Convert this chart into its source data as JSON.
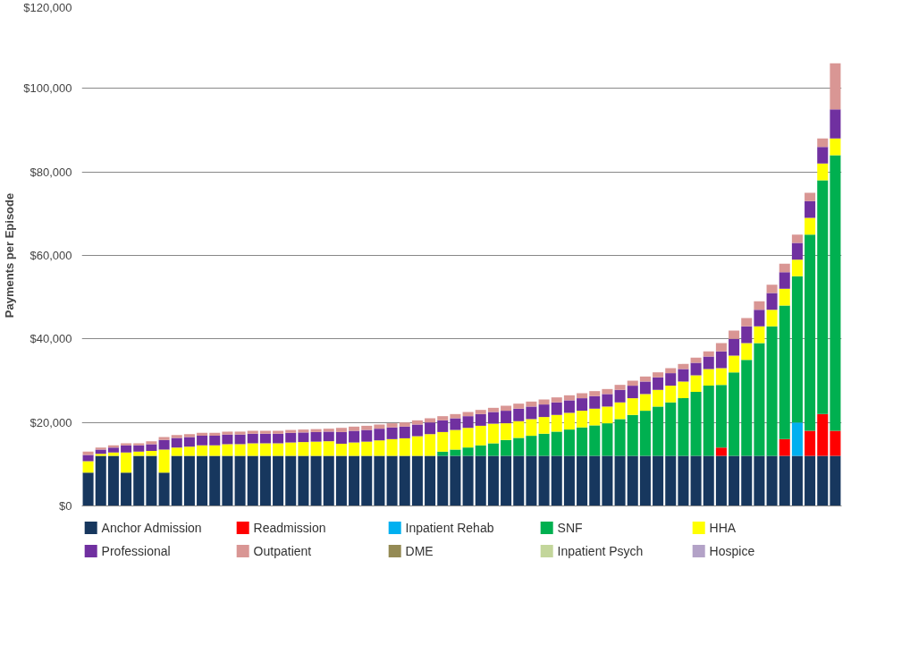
{
  "chart_data": {
    "type": "bar",
    "stacked": true,
    "ylabel": "Payments per Episode",
    "categories": [
      null,
      null,
      null,
      null,
      null,
      null,
      null,
      null,
      null,
      null,
      null,
      null,
      null,
      null,
      null,
      null,
      null,
      null,
      null,
      null,
      null,
      null,
      null,
      null,
      null,
      null,
      null,
      null,
      null,
      null,
      null,
      null,
      null,
      null,
      null,
      null,
      null,
      null,
      null,
      null,
      null,
      null,
      null,
      null,
      null,
      null,
      null,
      null,
      null,
      null,
      null,
      null,
      null,
      null,
      null,
      null,
      null,
      null,
      null,
      null
    ],
    "ylim": [
      0,
      120000
    ],
    "yticks": [
      {
        "value": 0,
        "label": "$0"
      },
      {
        "value": 20000,
        "label": "$20,000"
      },
      {
        "value": 40000,
        "label": "$40,000"
      },
      {
        "value": 60000,
        "label": "$60,000"
      },
      {
        "value": 80000,
        "label": "$80,000"
      },
      {
        "value": 100000,
        "label": "$100,000"
      },
      {
        "value": 120000,
        "label": "$120,000"
      }
    ],
    "grid": "y",
    "legend": "bottom",
    "series": [
      {
        "name": "Anchor Admission",
        "color": "#17375e",
        "values": [
          8000,
          12000,
          12000,
          8000,
          12000,
          12000,
          8000,
          12000,
          12000,
          12000,
          12000,
          12000,
          12000,
          12000,
          12000,
          12000,
          12000,
          12000,
          12000,
          12000,
          12000,
          12000,
          12000,
          12000,
          12000,
          12000,
          12000,
          12000,
          12000,
          12000,
          12000,
          12000,
          12000,
          12000,
          12000,
          12000,
          12000,
          12000,
          12000,
          12000,
          12000,
          12000,
          12000,
          12000,
          12000,
          12000,
          12000,
          12000,
          12000,
          12000,
          12000,
          12000,
          12000,
          12000,
          12000,
          12000,
          12000,
          12000,
          12000,
          12000
        ]
      },
      {
        "name": "Readmission",
        "color": "#ff0000",
        "values": [
          0,
          0,
          0,
          0,
          0,
          0,
          0,
          0,
          0,
          0,
          0,
          0,
          0,
          0,
          0,
          0,
          0,
          0,
          0,
          0,
          0,
          0,
          0,
          0,
          0,
          0,
          0,
          0,
          0,
          0,
          0,
          0,
          0,
          0,
          0,
          0,
          0,
          0,
          0,
          0,
          0,
          0,
          0,
          0,
          0,
          0,
          0,
          0,
          0,
          0,
          2000,
          0,
          0,
          0,
          0,
          4000,
          0,
          6000,
          10000,
          6000
        ]
      },
      {
        "name": "Inpatient Rehab",
        "color": "#00b0f0",
        "values": [
          0,
          0,
          0,
          0,
          0,
          0,
          0,
          0,
          0,
          0,
          0,
          0,
          0,
          0,
          0,
          0,
          0,
          0,
          0,
          0,
          0,
          0,
          0,
          0,
          0,
          0,
          0,
          0,
          0,
          0,
          0,
          0,
          0,
          0,
          0,
          0,
          0,
          0,
          0,
          0,
          0,
          0,
          0,
          0,
          0,
          0,
          0,
          0,
          0,
          0,
          0,
          0,
          0,
          0,
          0,
          0,
          8000,
          0,
          0,
          0
        ]
      },
      {
        "name": "SNF",
        "color": "#00b050",
        "values": [
          0,
          0,
          0,
          0,
          0,
          0,
          0,
          0,
          0,
          0,
          0,
          0,
          0,
          0,
          0,
          0,
          0,
          0,
          0,
          0,
          0,
          0,
          0,
          0,
          0,
          0,
          0,
          0,
          1000,
          1500,
          2000,
          2500,
          3000,
          3800,
          4300,
          4800,
          5300,
          5800,
          6300,
          6800,
          7300,
          7800,
          8800,
          9800,
          10800,
          11800,
          12800,
          13800,
          15300,
          16800,
          15000,
          20000,
          23000,
          27000,
          31000,
          32000,
          35000,
          47000,
          56000,
          66000
        ]
      },
      {
        "name": "HHA",
        "color": "#ffff00",
        "values": [
          2700,
          500,
          800,
          4800,
          1000,
          1200,
          5500,
          2000,
          2200,
          2500,
          2500,
          2800,
          2800,
          3000,
          3000,
          3000,
          3200,
          3300,
          3400,
          3500,
          2900,
          3200,
          3400,
          3700,
          4000,
          4200,
          4700,
          5200,
          4700,
          4700,
          4700,
          4700,
          4700,
          4000,
          4000,
          4000,
          4000,
          4000,
          4000,
          4000,
          4000,
          4000,
          4000,
          4000,
          4000,
          4000,
          4000,
          4000,
          4000,
          4000,
          4000,
          4000,
          4000,
          4000,
          4000,
          4000,
          4000,
          4000,
          4000,
          4000
        ]
      },
      {
        "name": "Professional",
        "color": "#7030a0",
        "values": [
          1500,
          1000,
          1200,
          1700,
          1500,
          1600,
          2300,
          2300,
          2300,
          2300,
          2300,
          2300,
          2300,
          2300,
          2300,
          2300,
          2300,
          2300,
          2300,
          2300,
          2800,
          2800,
          2800,
          2800,
          2800,
          2800,
          2800,
          2800,
          2800,
          2800,
          2800,
          2800,
          2800,
          3000,
          3000,
          3000,
          3000,
          3000,
          3000,
          3000,
          3000,
          3000,
          3000,
          3000,
          3000,
          3000,
          3000,
          3000,
          3000,
          3000,
          4000,
          4000,
          4000,
          4000,
          4000,
          4000,
          4000,
          4000,
          4000,
          7000
        ]
      },
      {
        "name": "Outpatient",
        "color": "#d99694",
        "values": [
          800,
          500,
          500,
          500,
          500,
          700,
          700,
          700,
          700,
          700,
          700,
          700,
          700,
          700,
          700,
          700,
          700,
          700,
          700,
          700,
          1000,
          1000,
          1000,
          1000,
          1000,
          1000,
          1000,
          1000,
          1000,
          1000,
          1000,
          1000,
          1000,
          1200,
          1200,
          1200,
          1200,
          1200,
          1200,
          1200,
          1200,
          1200,
          1200,
          1200,
          1200,
          1200,
          1200,
          1200,
          1200,
          1200,
          2000,
          2000,
          2000,
          2000,
          2000,
          2000,
          2000,
          2000,
          2000,
          11000
        ]
      },
      {
        "name": "DME",
        "color": "#948a54",
        "values": [
          0,
          0,
          0,
          0,
          0,
          0,
          0,
          0,
          0,
          0,
          0,
          0,
          0,
          0,
          0,
          0,
          0,
          0,
          0,
          0,
          0,
          0,
          0,
          0,
          0,
          0,
          0,
          0,
          0,
          0,
          0,
          0,
          0,
          0,
          0,
          0,
          0,
          0,
          0,
          0,
          0,
          0,
          0,
          0,
          0,
          0,
          0,
          0,
          0,
          0,
          0,
          0,
          0,
          0,
          0,
          0,
          0,
          0,
          0,
          0
        ]
      },
      {
        "name": "Inpatient Psych",
        "color": "#c3d69b",
        "values": [
          0,
          0,
          0,
          0,
          0,
          0,
          0,
          0,
          0,
          0,
          0,
          0,
          0,
          0,
          0,
          0,
          0,
          0,
          0,
          0,
          0,
          0,
          0,
          0,
          0,
          0,
          0,
          0,
          0,
          0,
          0,
          0,
          0,
          0,
          0,
          0,
          0,
          0,
          0,
          0,
          0,
          0,
          0,
          0,
          0,
          0,
          0,
          0,
          0,
          0,
          0,
          0,
          0,
          0,
          0,
          0,
          0,
          0,
          0,
          0
        ]
      },
      {
        "name": "Hospice",
        "color": "#b3a2c7",
        "values": [
          0,
          0,
          0,
          0,
          0,
          0,
          0,
          0,
          0,
          0,
          0,
          0,
          0,
          0,
          0,
          0,
          0,
          0,
          0,
          0,
          0,
          0,
          0,
          0,
          0,
          0,
          0,
          0,
          0,
          0,
          0,
          0,
          0,
          0,
          0,
          0,
          0,
          0,
          0,
          0,
          0,
          0,
          0,
          0,
          0,
          0,
          0,
          0,
          0,
          0,
          0,
          0,
          0,
          0,
          0,
          0,
          0,
          0,
          0,
          0
        ]
      }
    ]
  }
}
